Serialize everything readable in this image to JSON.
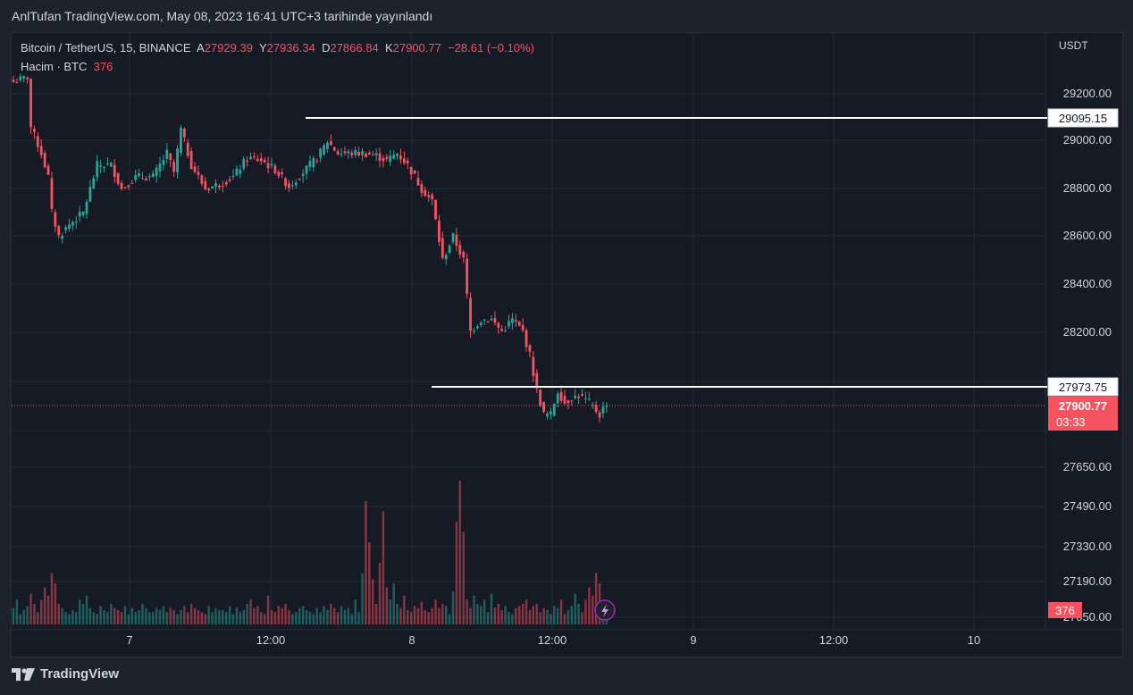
{
  "header": {
    "published": "AnlTufan TradingView.com, May 08, 2023 16:41 UTC+3 tarihinde yayınlandı"
  },
  "legend": {
    "symbol": "Bitcoin / TetherUS, 15, BINANCE",
    "o_label": "A",
    "o": "27929.39",
    "h_label": "Y",
    "h": "27936.34",
    "l_label": "D",
    "l": "27866.84",
    "c_label": "K",
    "c": "27900.77",
    "change": "−28.61 (−0.10%)",
    "volume_label": "Hacim · BTC",
    "volume": "376"
  },
  "axis": {
    "currency": "USDT",
    "price_ticks": [
      "29200.00",
      "29000.00",
      "28800.00",
      "28600.00",
      "28400.00",
      "28200.00",
      "27650.00",
      "27490.00",
      "27330.00",
      "27190.00",
      "27050.00"
    ],
    "time_ticks": [
      "7",
      "12:00",
      "8",
      "12:00",
      "9",
      "12:00",
      "10"
    ]
  },
  "horizontal_lines": [
    "29095.15",
    "27973.75"
  ],
  "current_price": {
    "value": "27900.77",
    "countdown": "03:33"
  },
  "volume_badge": "376",
  "colors": {
    "up": "#26a69a",
    "down": "#f7525f",
    "bg": "#161a25",
    "grid": "#252a36",
    "line": "#ffffff"
  },
  "footer": {
    "brand": "TradingView",
    "logo_icon": "tradingview-logo-icon"
  },
  "chart_data": {
    "type": "candlestick",
    "symbol": "Bitcoin / TetherUS",
    "interval": "15",
    "exchange": "BINANCE",
    "x_start": "May 6 ~20:00",
    "x_step_minutes": 15,
    "close_path": [
      [
        0,
        29250
      ],
      [
        4,
        29270
      ],
      [
        5,
        29060
      ],
      [
        8,
        28950
      ],
      [
        10,
        28850
      ],
      [
        11,
        28700
      ],
      [
        13,
        28600
      ],
      [
        16,
        28650
      ],
      [
        20,
        28700
      ],
      [
        24,
        28900
      ],
      [
        28,
        28900
      ],
      [
        31,
        28800
      ],
      [
        35,
        28850
      ],
      [
        40,
        28850
      ],
      [
        44,
        28950
      ],
      [
        46,
        28870
      ],
      [
        48,
        29050
      ],
      [
        51,
        28900
      ],
      [
        55,
        28800
      ],
      [
        59,
        28820
      ],
      [
        63,
        28850
      ],
      [
        67,
        28930
      ],
      [
        71,
        28920
      ],
      [
        75,
        28880
      ],
      [
        79,
        28810
      ],
      [
        83,
        28870
      ],
      [
        87,
        28930
      ],
      [
        90,
        29000
      ],
      [
        93,
        28950
      ],
      [
        96,
        28950
      ],
      [
        100,
        28950
      ],
      [
        104,
        28940
      ],
      [
        107,
        28920
      ],
      [
        110,
        28950
      ],
      [
        113,
        28900
      ],
      [
        117,
        28800
      ],
      [
        120,
        28750
      ],
      [
        123,
        28500
      ],
      [
        126,
        28600
      ],
      [
        129,
        28500
      ],
      [
        131,
        28200
      ],
      [
        134,
        28250
      ],
      [
        137,
        28250
      ],
      [
        140,
        28200
      ],
      [
        143,
        28250
      ],
      [
        146,
        28200
      ],
      [
        148,
        28100
      ],
      [
        150,
        27950
      ],
      [
        152,
        27850
      ],
      [
        154,
        27850
      ],
      [
        156,
        27950
      ],
      [
        158,
        27900
      ],
      [
        160,
        27920
      ],
      [
        162,
        27930
      ],
      [
        165,
        27900
      ],
      [
        168,
        27850
      ],
      [
        170,
        27900
      ]
    ],
    "volume_values": [
      8,
      12,
      5,
      7,
      9,
      15,
      10,
      6,
      12,
      18,
      14,
      25,
      20,
      10,
      8,
      6,
      5,
      7,
      6,
      12,
      10,
      14,
      8,
      6,
      5,
      9,
      7,
      6,
      10,
      8,
      7,
      6,
      9,
      5,
      8,
      6,
      7,
      10,
      8,
      6,
      6,
      8,
      7,
      9,
      6,
      8,
      7,
      5,
      7,
      9,
      6,
      10,
      8,
      7,
      6,
      5,
      9,
      6,
      8,
      7,
      7,
      6,
      9,
      5,
      8,
      6,
      7,
      10,
      12,
      8,
      9,
      6,
      5,
      14,
      7,
      6,
      9,
      8,
      10,
      7,
      5,
      6,
      8,
      9,
      7,
      6,
      5,
      8,
      6,
      9,
      7,
      10,
      8,
      6,
      9,
      7,
      8,
      5,
      12,
      6,
      25,
      60,
      40,
      22,
      10,
      30,
      55,
      18,
      12,
      20,
      10,
      8,
      14,
      7,
      6,
      9,
      8,
      11,
      7,
      6,
      8,
      12,
      8,
      10,
      9,
      5,
      16,
      50,
      70,
      45,
      12,
      8,
      14,
      10,
      9,
      12,
      6,
      15,
      8,
      10,
      7,
      9,
      6,
      5,
      8,
      9,
      10,
      12,
      7,
      9,
      10,
      6,
      8,
      7,
      5,
      9
    ],
    "volume_last": 376,
    "horizontal_levels": [
      29095.15,
      27973.75
    ],
    "last": {
      "open": 27929.39,
      "high": 27936.34,
      "low": 27866.84,
      "close": 27900.77
    },
    "ylabel": "USDT",
    "grid": true
  }
}
